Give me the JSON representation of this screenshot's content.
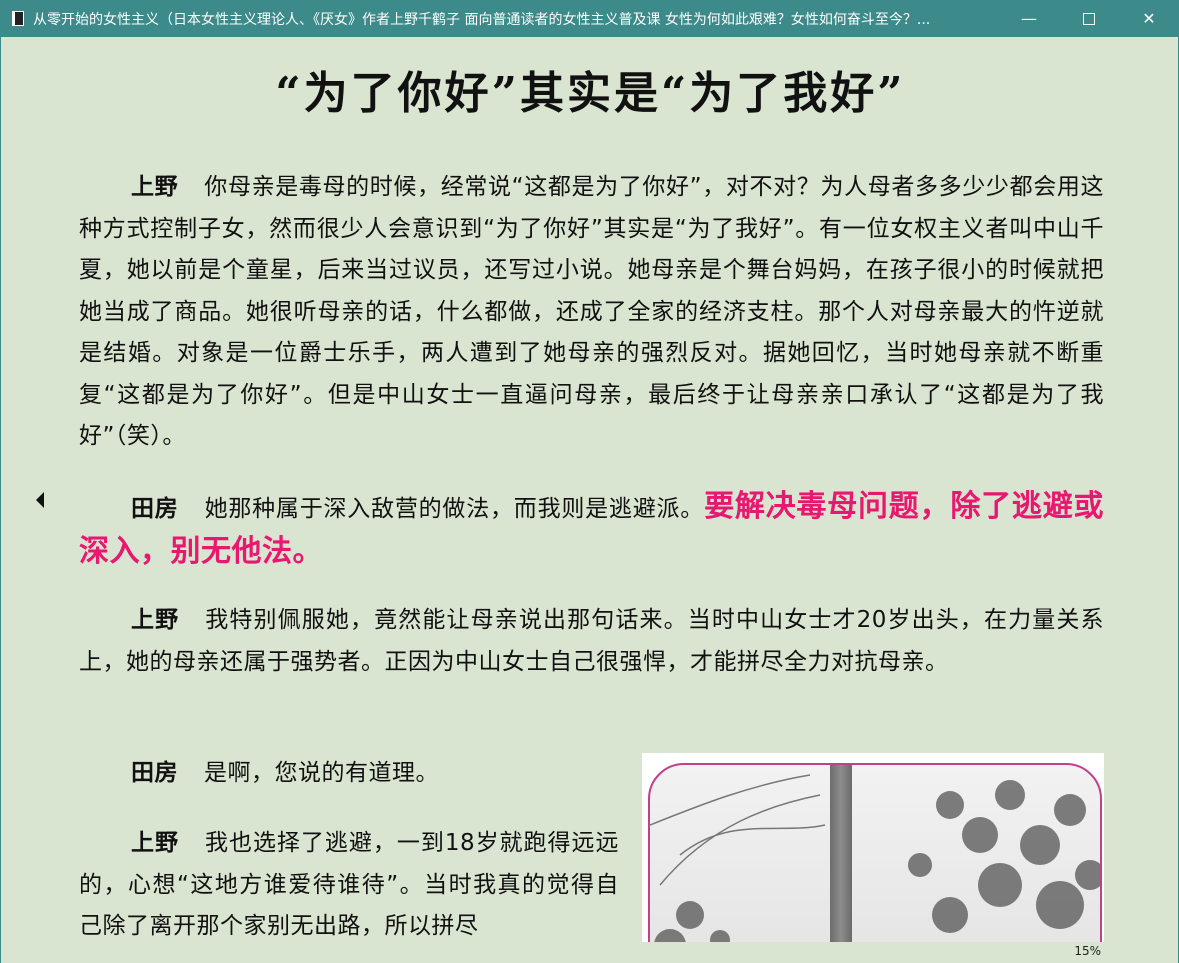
{
  "window": {
    "title": "从零开始的女性主义（日本女性主义理论人、《厌女》作者上野千鹤子 面向普通读者的女性主义普及课 女性为何如此艰难？女性如何奋斗至今？...",
    "minimize": "—",
    "close": "✕"
  },
  "chapter": {
    "title": "“为了你好”其实是“为了我好”"
  },
  "paragraphs": [
    {
      "speaker": "上野",
      "text": "你母亲是毒母的时候，经常说“这都是为了你好”，对不对？为人母者多多少少都会用这种方式控制子女，然而很少人会意识到“为了你好”其实是“为了我好”。有一位女权主义者叫中山千夏，她以前是个童星，后来当过议员，还写过小说。她母亲是个舞台妈妈，在孩子很小的时候就把她当成了商品。她很听母亲的话，什么都做，还成了全家的经济支柱。那个人对母亲最大的忤逆就是结婚。对象是一位爵士乐手，两人遭到了她母亲的强烈反对。据她回忆，当时她母亲就不断重复“这都是为了你好”。但是中山女士一直逼问母亲，最后终于让母亲亲口承认了“这都是为了我好”（笑）。"
    },
    {
      "speaker": "田房",
      "text": "她那种属于深入敌营的做法，而我则是逃避派。",
      "highlight": "要解决毒母问题，除了逃避或深入，别无他法。"
    },
    {
      "speaker": "上野",
      "text": "我特别佩服她，竟然能让母亲说出那句话来。当时中山女士才20岁出头，在力量关系上，她的母亲还属于强势者。正因为中山女士自己很强悍，才能拼尽全力对抗母亲。"
    },
    {
      "speaker": "田房",
      "text": "是啊，您说的有道理。"
    },
    {
      "speaker": "上野",
      "text": "我也选择了逃避，一到18岁就跑得远远的，心想“这地方谁爱待谁待”。当时我真的觉得自己除了离开那个家别无出路，所以拼尽"
    }
  ],
  "reader": {
    "progress": "15%"
  },
  "colors": {
    "titlebar": "#3d8a8a",
    "page_background": "#d9e5d0",
    "highlight": "#e8176f"
  },
  "icons": {
    "prev_page": "triangle-left",
    "app": "book-icon"
  }
}
